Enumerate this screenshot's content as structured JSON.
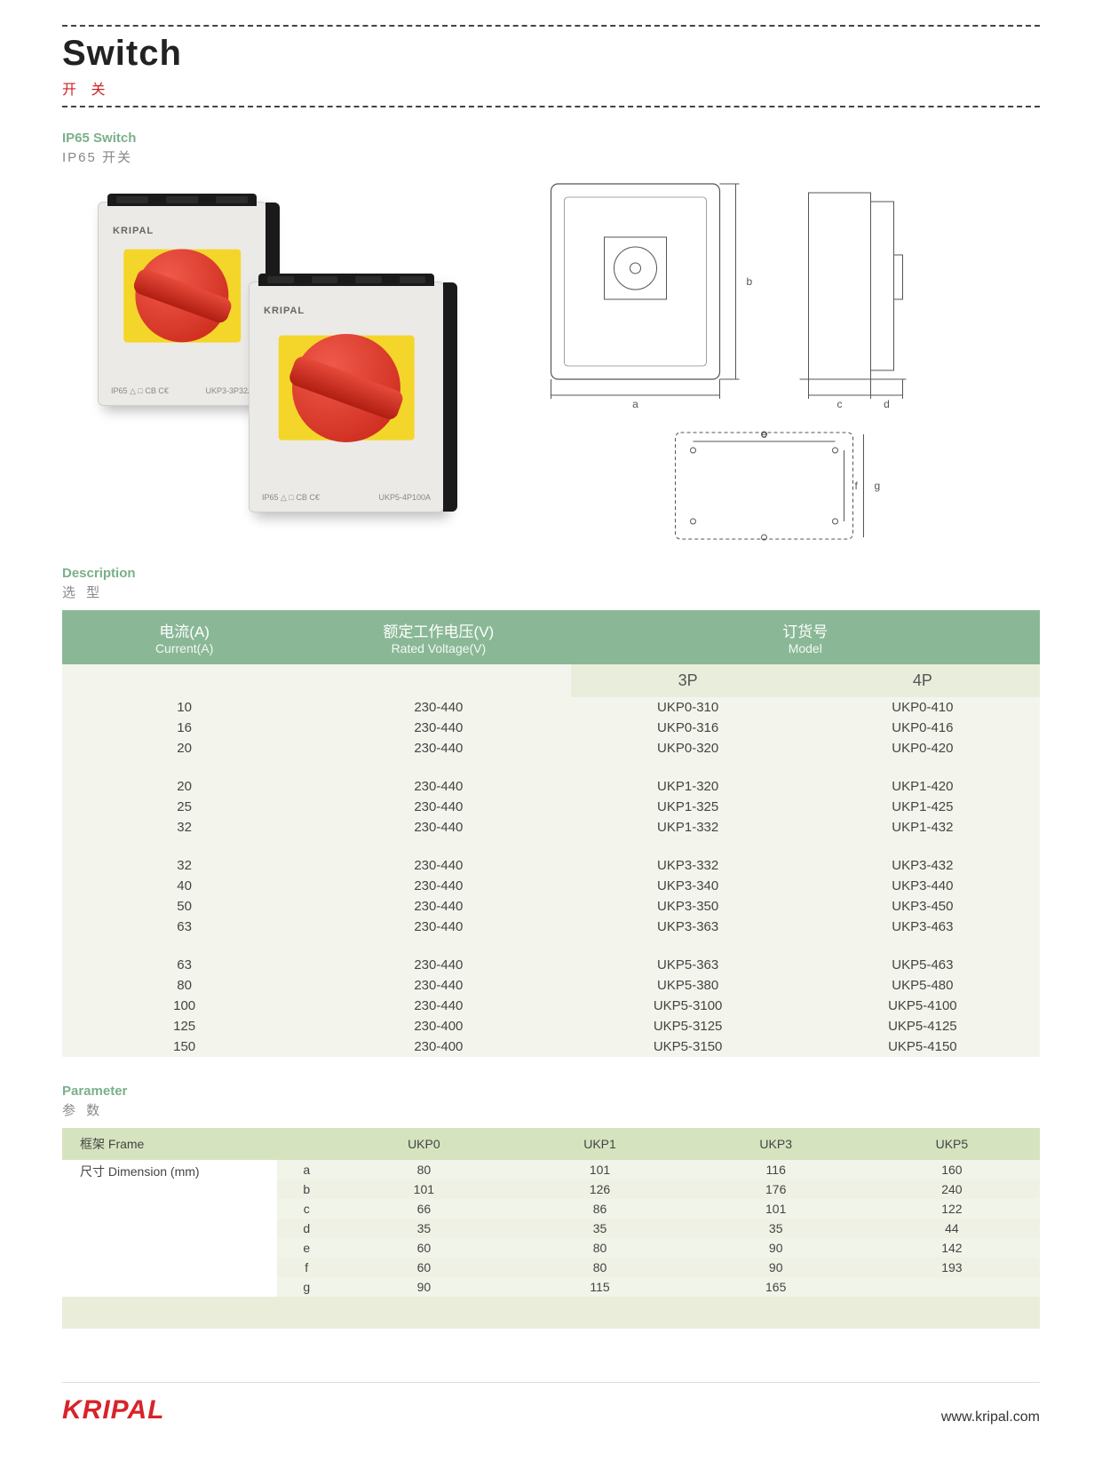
{
  "colors": {
    "accent_red": "#d8232a",
    "header_green": "#8ab896",
    "header_green_text": "#ffffff",
    "subheader_bg": "#e8eedb",
    "cell_bg": "#f3f5ec",
    "param_header_bg": "#d6e3bf",
    "param_row_even": "#f1f4e9",
    "param_row_odd": "#eef1e4",
    "label_green": "#7ab08a",
    "muted": "#888888"
  },
  "title": {
    "en": "Switch",
    "cn": "开 关"
  },
  "subtitle": {
    "en": "IP65 Switch",
    "cn": "IP65 开关"
  },
  "product_photo": {
    "brand": "KRIPAL",
    "unit1_footnote_left": "IP65 △ □ CB C€",
    "unit1_footnote_right": "UKP3-3P32A",
    "unit2_footnote_left": "IP65 △ □ CB C€",
    "unit2_footnote_right": "UKP5-4P100A"
  },
  "dimension_diagram": {
    "front_labels": [
      "a",
      "b"
    ],
    "side_labels": [
      "c",
      "d"
    ],
    "mount_labels": [
      "e",
      "f",
      "g"
    ]
  },
  "description": {
    "heading_en": "Description",
    "heading_cn": "选 型",
    "columns": {
      "current_cn": "电流(A)",
      "current_en": "Current(A)",
      "voltage_cn": "额定工作电压(V)",
      "voltage_en": "Rated Voltage(V)",
      "model_cn": "订货号",
      "model_en": "Model",
      "p3": "3P",
      "p4": "4P"
    },
    "groups": [
      [
        {
          "current": "10",
          "voltage": "230-440",
          "p3": "UKP0-310",
          "p4": "UKP0-410"
        },
        {
          "current": "16",
          "voltage": "230-440",
          "p3": "UKP0-316",
          "p4": "UKP0-416"
        },
        {
          "current": "20",
          "voltage": "230-440",
          "p3": "UKP0-320",
          "p4": "UKP0-420"
        }
      ],
      [
        {
          "current": "20",
          "voltage": "230-440",
          "p3": "UKP1-320",
          "p4": "UKP1-420"
        },
        {
          "current": "25",
          "voltage": "230-440",
          "p3": "UKP1-325",
          "p4": "UKP1-425"
        },
        {
          "current": "32",
          "voltage": "230-440",
          "p3": "UKP1-332",
          "p4": "UKP1-432"
        }
      ],
      [
        {
          "current": "32",
          "voltage": "230-440",
          "p3": "UKP3-332",
          "p4": "UKP3-432"
        },
        {
          "current": "40",
          "voltage": "230-440",
          "p3": "UKP3-340",
          "p4": "UKP3-440"
        },
        {
          "current": "50",
          "voltage": "230-440",
          "p3": "UKP3-350",
          "p4": "UKP3-450"
        },
        {
          "current": "63",
          "voltage": "230-440",
          "p3": "UKP3-363",
          "p4": "UKP3-463"
        }
      ],
      [
        {
          "current": "63",
          "voltage": "230-440",
          "p3": "UKP5-363",
          "p4": "UKP5-463"
        },
        {
          "current": "80",
          "voltage": "230-440",
          "p3": "UKP5-380",
          "p4": "UKP5-480"
        },
        {
          "current": "100",
          "voltage": "230-440",
          "p3": "UKP5-3100",
          "p4": "UKP5-4100"
        },
        {
          "current": "125",
          "voltage": "230-400",
          "p3": "UKP5-3125",
          "p4": "UKP5-4125"
        },
        {
          "current": "150",
          "voltage": "230-400",
          "p3": "UKP5-3150",
          "p4": "UKP5-4150"
        }
      ]
    ]
  },
  "parameter": {
    "heading_en": "Parameter",
    "heading_cn": "参 数",
    "frame_label": "框架 Frame",
    "dimension_label": "尺寸 Dimension (mm)",
    "frames": [
      "UKP0",
      "UKP1",
      "UKP3",
      "UKP5"
    ],
    "rows": [
      {
        "dim": "a",
        "vals": [
          "80",
          "101",
          "116",
          "160"
        ]
      },
      {
        "dim": "b",
        "vals": [
          "101",
          "126",
          "176",
          "240"
        ]
      },
      {
        "dim": "c",
        "vals": [
          "66",
          "86",
          "101",
          "122"
        ]
      },
      {
        "dim": "d",
        "vals": [
          "35",
          "35",
          "35",
          "44"
        ]
      },
      {
        "dim": "e",
        "vals": [
          "60",
          "80",
          "90",
          "142"
        ]
      },
      {
        "dim": "f",
        "vals": [
          "60",
          "80",
          "90",
          "193"
        ]
      },
      {
        "dim": "g",
        "vals": [
          "90",
          "115",
          "165",
          ""
        ]
      }
    ]
  },
  "footer": {
    "brand": "KRIPAL",
    "url": "www.kripal.com"
  }
}
